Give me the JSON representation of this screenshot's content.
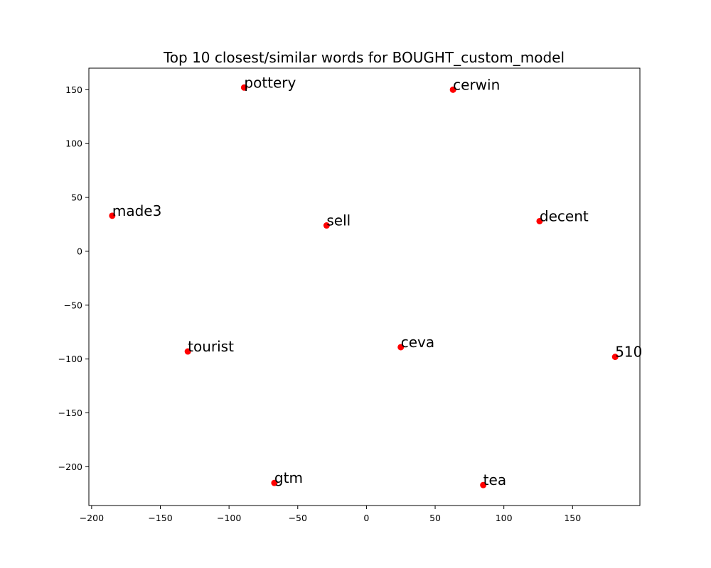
{
  "chart_data": {
    "type": "scatter",
    "title": "Top 10 closest/similar words for BOUGHT_custom_model",
    "xlabel": "",
    "ylabel": "",
    "xlim": [
      -202,
      199
    ],
    "ylim": [
      -236,
      170
    ],
    "x_ticks": [
      -200,
      -150,
      -100,
      -50,
      0,
      50,
      100,
      150
    ],
    "y_ticks": [
      -200,
      -150,
      -100,
      -50,
      0,
      50,
      100,
      150
    ],
    "grid": false,
    "marker_color": "#ff0000",
    "points": [
      {
        "label": "pottery",
        "x": -89,
        "y": 152
      },
      {
        "label": "cerwin",
        "x": 63,
        "y": 150
      },
      {
        "label": "made3",
        "x": -185,
        "y": 33
      },
      {
        "label": "sell",
        "x": -29,
        "y": 24
      },
      {
        "label": "decent",
        "x": 126,
        "y": 28
      },
      {
        "label": "tourist",
        "x": -130,
        "y": -93
      },
      {
        "label": "ceva",
        "x": 25,
        "y": -89
      },
      {
        "label": "510",
        "x": 181,
        "y": -98
      },
      {
        "label": "gtm",
        "x": -67,
        "y": -215
      },
      {
        "label": "tea",
        "x": 85,
        "y": -217
      }
    ]
  }
}
